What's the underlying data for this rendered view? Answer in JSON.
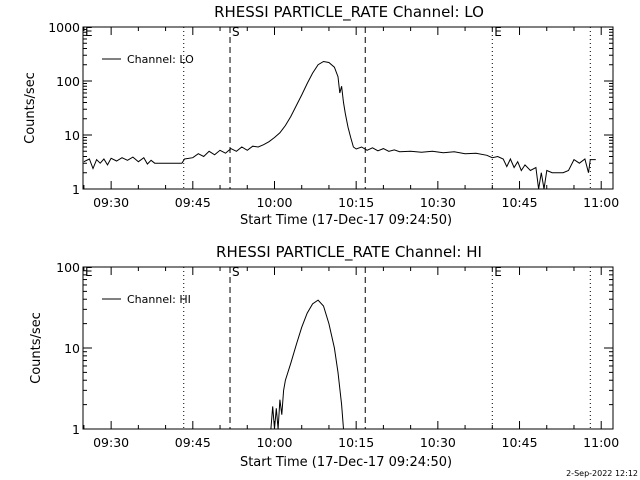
{
  "footer": {
    "date_stamp": "2-Sep-2022 12:12"
  },
  "chart_data": [
    {
      "type": "line",
      "title": "RHESSI PARTICLE_RATE Channel: LO",
      "xlabel": "Start Time (17-Dec-17 09:24:50)",
      "ylabel": "Counts/sec",
      "yscale": "log",
      "xlim": [
        "09:24:50",
        "11:02:10"
      ],
      "ylim": [
        1,
        1000
      ],
      "xticks": [
        "09:30",
        "09:45",
        "10:00",
        "10:15",
        "10:30",
        "10:45",
        "11:00"
      ],
      "yticks": [
        "1",
        "10",
        "100",
        "1000"
      ],
      "grid": false,
      "legend": {
        "position": "top-left",
        "entries": [
          "Channel: LO"
        ]
      },
      "markers": [
        {
          "label": "E",
          "time": "09:24:50",
          "style": "dotted"
        },
        {
          "label": "",
          "time": "09:43:20",
          "style": "dotted"
        },
        {
          "label": "S",
          "time": "09:51:50",
          "style": "dashed"
        },
        {
          "label": "",
          "time": "10:16:40",
          "style": "dashed"
        },
        {
          "label": "E",
          "time": "10:40:00",
          "style": "dotted"
        },
        {
          "label": "",
          "time": "10:58:00",
          "style": "dotted"
        }
      ],
      "series": [
        {
          "name": "Channel: LO",
          "points": [
            [
              "09:25:00",
              3.2
            ],
            [
              "09:26:00",
              3.6
            ],
            [
              "09:26:40",
              2.4
            ],
            [
              "09:27:20",
              3.5
            ],
            [
              "09:28:00",
              3.0
            ],
            [
              "09:28:40",
              3.6
            ],
            [
              "09:29:20",
              2.8
            ],
            [
              "09:30:00",
              3.7
            ],
            [
              "09:31:00",
              3.3
            ],
            [
              "09:32:00",
              3.8
            ],
            [
              "09:33:00",
              3.4
            ],
            [
              "09:34:00",
              3.9
            ],
            [
              "09:35:00",
              3.2
            ],
            [
              "09:36:00",
              3.8
            ],
            [
              "09:36:40",
              2.9
            ],
            [
              "09:37:20",
              3.4
            ],
            [
              "09:38:00",
              3.0
            ],
            [
              "09:39:00",
              3.0
            ],
            [
              "09:40:00",
              3.0
            ],
            [
              "09:41:00",
              3.0
            ],
            [
              "09:42:00",
              3.0
            ],
            [
              "09:43:00",
              3.0
            ],
            [
              "09:43:30",
              3.6
            ],
            [
              "09:45:00",
              3.8
            ],
            [
              "09:46:00",
              4.5
            ],
            [
              "09:47:00",
              4.0
            ],
            [
              "09:48:00",
              5.0
            ],
            [
              "09:49:00",
              4.3
            ],
            [
              "09:50:00",
              5.2
            ],
            [
              "09:51:00",
              4.6
            ],
            [
              "09:52:00",
              5.6
            ],
            [
              "09:53:00",
              5.0
            ],
            [
              "09:54:00",
              6.0
            ],
            [
              "09:55:00",
              5.2
            ],
            [
              "09:56:00",
              6.2
            ],
            [
              "09:57:00",
              6.0
            ],
            [
              "09:58:00",
              6.6
            ],
            [
              "09:59:00",
              7.5
            ],
            [
              "10:00:00",
              9.0
            ],
            [
              "10:01:00",
              11.0
            ],
            [
              "10:02:00",
              15.0
            ],
            [
              "10:03:00",
              22.0
            ],
            [
              "10:04:00",
              35.0
            ],
            [
              "10:05:00",
              55.0
            ],
            [
              "10:06:00",
              90.0
            ],
            [
              "10:07:00",
              140.0
            ],
            [
              "10:08:00",
              200.0
            ],
            [
              "10:09:00",
              230.0
            ],
            [
              "10:10:00",
              220.0
            ],
            [
              "10:11:00",
              180.0
            ],
            [
              "10:11:40",
              120.0
            ],
            [
              "10:12:00",
              60.0
            ],
            [
              "10:12:20",
              80.0
            ],
            [
              "10:12:40",
              40.0
            ],
            [
              "10:13:00",
              25.0
            ],
            [
              "10:13:30",
              14.0
            ],
            [
              "10:14:00",
              9.0
            ],
            [
              "10:14:30",
              6.0
            ],
            [
              "10:15:00",
              5.5
            ],
            [
              "10:16:00",
              6.0
            ],
            [
              "10:17:00",
              5.2
            ],
            [
              "10:18:00",
              5.8
            ],
            [
              "10:19:00",
              5.1
            ],
            [
              "10:20:00",
              5.6
            ],
            [
              "10:21:00",
              5.0
            ],
            [
              "10:22:00",
              5.3
            ],
            [
              "10:23:00",
              4.9
            ],
            [
              "10:25:00",
              5.0
            ],
            [
              "10:27:00",
              4.8
            ],
            [
              "10:29:00",
              5.0
            ],
            [
              "10:31:00",
              4.7
            ],
            [
              "10:33:00",
              4.9
            ],
            [
              "10:35:00",
              4.5
            ],
            [
              "10:37:00",
              4.6
            ],
            [
              "10:39:00",
              4.2
            ],
            [
              "10:40:00",
              3.8
            ],
            [
              "10:41:00",
              4.0
            ],
            [
              "10:42:00",
              3.6
            ],
            [
              "10:42:40",
              2.6
            ],
            [
              "10:43:20",
              3.6
            ],
            [
              "10:44:00",
              2.5
            ],
            [
              "10:44:40",
              3.2
            ],
            [
              "10:45:20",
              2.2
            ],
            [
              "10:46:00",
              2.8
            ],
            [
              "10:47:00",
              2.2
            ],
            [
              "10:48:00",
              2.5
            ],
            [
              "10:48:30",
              1.0
            ],
            [
              "10:49:00",
              2.0
            ],
            [
              "10:49:30",
              1.0
            ],
            [
              "10:50:00",
              2.2
            ],
            [
              "10:51:00",
              2.0
            ],
            [
              "10:52:00",
              2.0
            ],
            [
              "10:53:00",
              2.0
            ],
            [
              "10:54:00",
              2.2
            ],
            [
              "10:55:00",
              3.5
            ],
            [
              "10:56:00",
              3.0
            ],
            [
              "10:57:00",
              3.6
            ],
            [
              "10:57:40",
              2.0
            ],
            [
              "10:58:00",
              3.5
            ],
            [
              "10:59:00",
              3.5
            ]
          ]
        }
      ]
    },
    {
      "type": "line",
      "title": "RHESSI PARTICLE_RATE Channel: HI",
      "xlabel": "Start Time (17-Dec-17 09:24:50)",
      "ylabel": "Counts/sec",
      "yscale": "log",
      "xlim": [
        "09:24:50",
        "11:02:10"
      ],
      "ylim": [
        1,
        100
      ],
      "xticks": [
        "09:30",
        "09:45",
        "10:00",
        "10:15",
        "10:30",
        "10:45",
        "11:00"
      ],
      "yticks": [
        "1",
        "10",
        "100"
      ],
      "grid": false,
      "legend": {
        "position": "top-left",
        "entries": [
          "Channel: HI"
        ]
      },
      "markers": [
        {
          "label": "E",
          "time": "09:24:50",
          "style": "dotted"
        },
        {
          "label": "",
          "time": "09:43:20",
          "style": "dotted"
        },
        {
          "label": "S",
          "time": "09:51:50",
          "style": "dashed"
        },
        {
          "label": "",
          "time": "10:16:40",
          "style": "dashed"
        },
        {
          "label": "E",
          "time": "10:40:00",
          "style": "dotted"
        },
        {
          "label": "",
          "time": "10:58:00",
          "style": "dotted"
        }
      ],
      "series": [
        {
          "name": "Channel: HI",
          "points": [
            [
              "09:59:20",
              1.0
            ],
            [
              "09:59:40",
              1.9
            ],
            [
              "10:00:00",
              1.0
            ],
            [
              "10:00:20",
              1.8
            ],
            [
              "10:00:40",
              1.0
            ],
            [
              "10:01:00",
              2.3
            ],
            [
              "10:01:20",
              1.5
            ],
            [
              "10:01:40",
              3.0
            ],
            [
              "10:02:00",
              4.0
            ],
            [
              "10:03:00",
              6.5
            ],
            [
              "10:04:00",
              11.0
            ],
            [
              "10:05:00",
              18.0
            ],
            [
              "10:06:00",
              27.0
            ],
            [
              "10:07:00",
              35.0
            ],
            [
              "10:08:00",
              39.0
            ],
            [
              "10:09:00",
              33.0
            ],
            [
              "10:10:00",
              20.0
            ],
            [
              "10:11:00",
              10.0
            ],
            [
              "10:11:40",
              5.0
            ],
            [
              "10:12:20",
              2.0
            ],
            [
              "10:12:40",
              1.0
            ]
          ]
        }
      ]
    }
  ]
}
